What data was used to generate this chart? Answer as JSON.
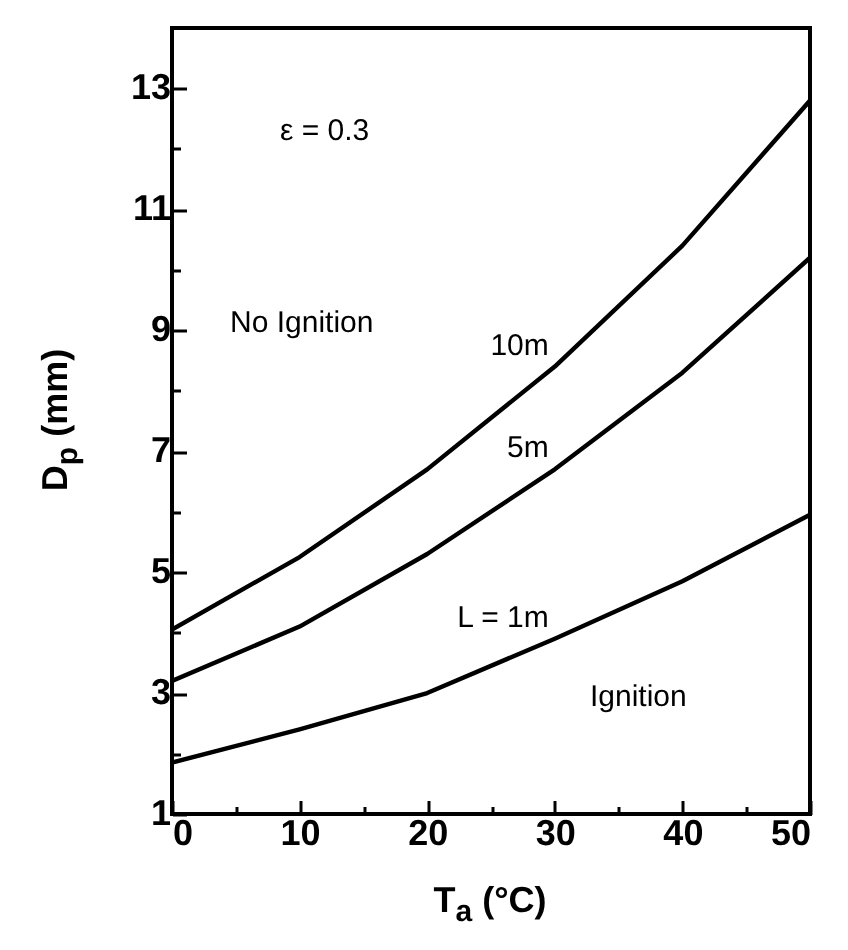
{
  "chart_data": {
    "type": "line",
    "xlabel": "T$_{a}$ (°C)",
    "ylabel": "D$_{p}$ (mm)",
    "x": [
      0,
      10,
      20,
      30,
      40,
      50
    ],
    "series": [
      {
        "name": "10m",
        "color": "#000000",
        "values": [
          4.05,
          5.25,
          6.7,
          8.4,
          10.4,
          12.8
        ]
      },
      {
        "name": "5m",
        "color": "#000000",
        "values": [
          3.2,
          4.1,
          5.3,
          6.7,
          8.3,
          10.2
        ]
      },
      {
        "name": "L = 1m",
        "color": "#000000",
        "values": [
          1.85,
          2.4,
          3.0,
          3.9,
          4.85,
          5.95
        ]
      }
    ],
    "xlim": [
      0,
      50
    ],
    "ylim": [
      1,
      14
    ],
    "xticks": [
      0,
      {
        "value": 5,
        "label": null
      },
      10,
      {
        "value": 15,
        "label": null
      },
      20,
      {
        "value": 25,
        "label": null
      },
      30,
      {
        "value": 35,
        "label": null
      },
      40,
      {
        "value": 45,
        "label": null
      },
      50
    ],
    "yticks": [
      1,
      {
        "value": 2,
        "label": null
      },
      3,
      {
        "value": 4,
        "label": null
      },
      5,
      {
        "value": 6,
        "label": null
      },
      7,
      {
        "value": 8,
        "label": null
      },
      9,
      {
        "value": 10,
        "label": null
      },
      11,
      {
        "value": 12,
        "label": null
      },
      13
    ],
    "annotations": [
      "ε = 0.3",
      "No Ignition",
      "Ignition"
    ]
  }
}
